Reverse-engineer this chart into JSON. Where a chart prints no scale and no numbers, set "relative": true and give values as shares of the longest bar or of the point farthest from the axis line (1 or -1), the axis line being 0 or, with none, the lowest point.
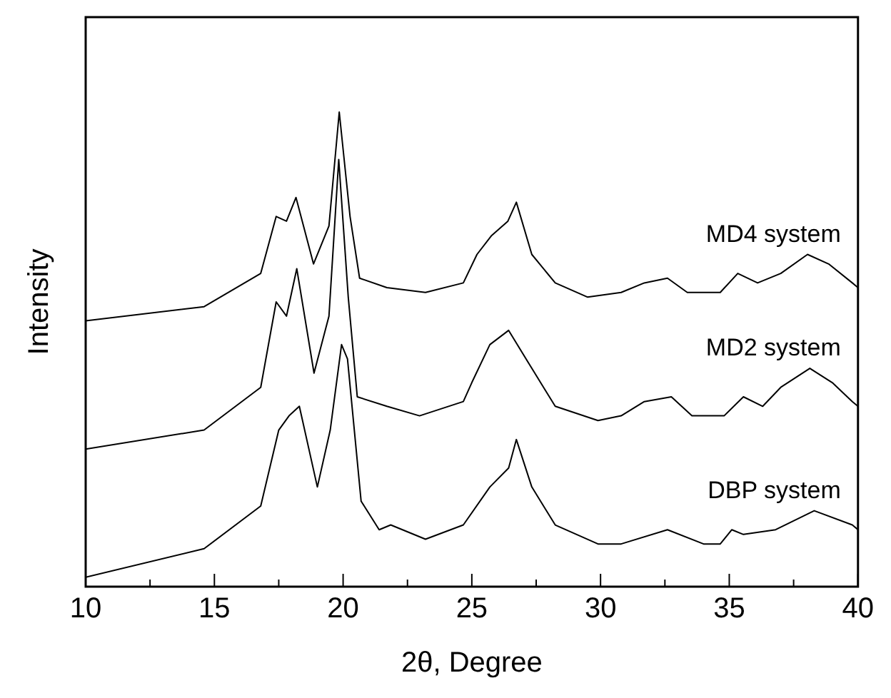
{
  "chart_data": {
    "type": "line",
    "relative": true,
    "xlabel": "2θ, Degree",
    "ylabel": "Intensity",
    "xlim": [
      10,
      40
    ],
    "xticks": [
      10,
      {
        "value": 12.5,
        "label": null
      },
      15,
      {
        "value": 17.5,
        "label": null
      },
      20,
      {
        "value": 22.5,
        "label": null
      },
      25,
      {
        "value": 27.5,
        "label": null
      },
      30,
      {
        "value": 32.5,
        "label": null
      },
      35,
      {
        "value": 37.5,
        "label": null
      },
      40
    ],
    "grid": false,
    "legend": false,
    "marker": "none",
    "line_style": "solid",
    "series": [
      {
        "name": "MD4 system",
        "color": "#000000",
        "x": [
          10,
          14.6,
          16.8,
          17.4,
          17.8,
          18.17,
          18.85,
          19.45,
          19.85,
          20.27,
          20.64,
          21.7,
          23.2,
          24.67,
          25.2,
          25.77,
          26.4,
          26.73,
          27.33,
          28.24,
          29.5,
          30.8,
          31.7,
          32.6,
          33.37,
          34.65,
          35.33,
          36.1,
          37.0,
          38.04,
          38.86,
          39.78,
          40
        ],
        "values": [
          0.56,
          0.59,
          0.66,
          0.78,
          0.77,
          0.82,
          0.68,
          0.76,
          1.0,
          0.78,
          0.65,
          0.63,
          0.62,
          0.64,
          0.7,
          0.74,
          0.77,
          0.81,
          0.7,
          0.64,
          0.61,
          0.62,
          0.64,
          0.65,
          0.62,
          0.62,
          0.66,
          0.64,
          0.66,
          0.7,
          0.68,
          0.64,
          0.63
        ]
      },
      {
        "name": "MD2 system",
        "color": "#000000",
        "x": [
          10,
          14.6,
          16.8,
          17.4,
          17.8,
          18.2,
          18.87,
          19.45,
          19.83,
          20.2,
          20.55,
          21.7,
          22.97,
          24.67,
          25.0,
          25.7,
          26.43,
          27.33,
          28.24,
          29.9,
          30.8,
          31.7,
          32.75,
          33.55,
          34.8,
          35.55,
          36.3,
          37.0,
          38.13,
          39.0,
          39.78,
          40
        ],
        "values": [
          0.29,
          0.33,
          0.42,
          0.6,
          0.57,
          0.67,
          0.45,
          0.57,
          0.9,
          0.61,
          0.4,
          0.38,
          0.36,
          0.39,
          0.43,
          0.51,
          0.54,
          0.46,
          0.38,
          0.35,
          0.36,
          0.39,
          0.4,
          0.36,
          0.36,
          0.4,
          0.38,
          0.42,
          0.46,
          0.43,
          0.39,
          0.38
        ]
      },
      {
        "name": "DBP system",
        "color": "#000000",
        "x": [
          10,
          14.6,
          16.8,
          17.5,
          17.9,
          18.3,
          19.0,
          19.5,
          19.94,
          20.17,
          20.7,
          21.4,
          21.85,
          23.2,
          24.67,
          25.7,
          26.43,
          26.73,
          27.33,
          28.24,
          29.9,
          30.8,
          32.6,
          34.0,
          34.65,
          35.1,
          35.55,
          36.8,
          38.3,
          39.78,
          40
        ],
        "values": [
          0.02,
          0.08,
          0.17,
          0.33,
          0.36,
          0.38,
          0.21,
          0.33,
          0.51,
          0.48,
          0.18,
          0.12,
          0.13,
          0.1,
          0.13,
          0.21,
          0.25,
          0.31,
          0.21,
          0.13,
          0.09,
          0.09,
          0.12,
          0.09,
          0.09,
          0.12,
          0.11,
          0.12,
          0.16,
          0.13,
          0.12
        ]
      }
    ]
  }
}
